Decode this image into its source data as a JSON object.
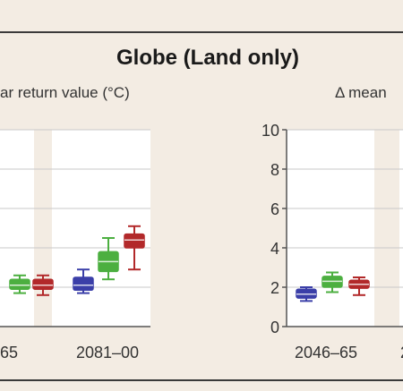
{
  "figure": {
    "title": "Globe (Land only)",
    "background_color": "#f3ece3",
    "border_color": "#3a3a3a"
  },
  "chart_data": [
    {
      "type": "boxplot",
      "subtitle": "ar return value (°C)",
      "periods": [
        "65",
        "2081–00"
      ],
      "ylim": [
        0,
        10
      ],
      "series_colors": [
        "#3b3fa8",
        "#4caf40",
        "#b2292a"
      ],
      "groups": [
        {
          "period": "65",
          "boxes": [
            {
              "color_index": 1,
              "whisker_low": 1.7,
              "q1": 1.9,
              "median": 2.1,
              "q3": 2.4,
              "whisker_high": 2.6
            },
            {
              "color_index": 2,
              "whisker_low": 1.6,
              "q1": 1.9,
              "median": 2.1,
              "q3": 2.4,
              "whisker_high": 2.6
            }
          ]
        },
        {
          "period": "2081–00",
          "boxes": [
            {
              "color_index": 0,
              "whisker_low": 1.7,
              "q1": 1.85,
              "median": 2.1,
              "q3": 2.5,
              "whisker_high": 2.9
            },
            {
              "color_index": 1,
              "whisker_low": 2.4,
              "q1": 2.8,
              "median": 3.3,
              "q3": 3.8,
              "whisker_high": 4.5
            },
            {
              "color_index": 2,
              "whisker_low": 2.9,
              "q1": 4.0,
              "median": 4.4,
              "q3": 4.7,
              "whisker_high": 5.1
            }
          ]
        }
      ]
    },
    {
      "type": "boxplot",
      "subtitle": "Δ mean",
      "periods": [
        "2046–65",
        "2"
      ],
      "yticks": [
        "0",
        "2",
        "4",
        "6",
        "8",
        "10"
      ],
      "ylim": [
        0,
        10
      ],
      "series_colors": [
        "#3b3fa8",
        "#4caf40",
        "#b2292a"
      ],
      "groups": [
        {
          "period": "2046–65",
          "boxes": [
            {
              "color_index": 0,
              "whisker_low": 1.3,
              "q1": 1.45,
              "median": 1.65,
              "q3": 1.9,
              "whisker_high": 2.0
            },
            {
              "color_index": 1,
              "whisker_low": 1.75,
              "q1": 2.0,
              "median": 2.3,
              "q3": 2.55,
              "whisker_high": 2.75
            },
            {
              "color_index": 2,
              "whisker_low": 1.6,
              "q1": 1.95,
              "median": 2.15,
              "q3": 2.35,
              "whisker_high": 2.5
            }
          ]
        }
      ]
    }
  ]
}
